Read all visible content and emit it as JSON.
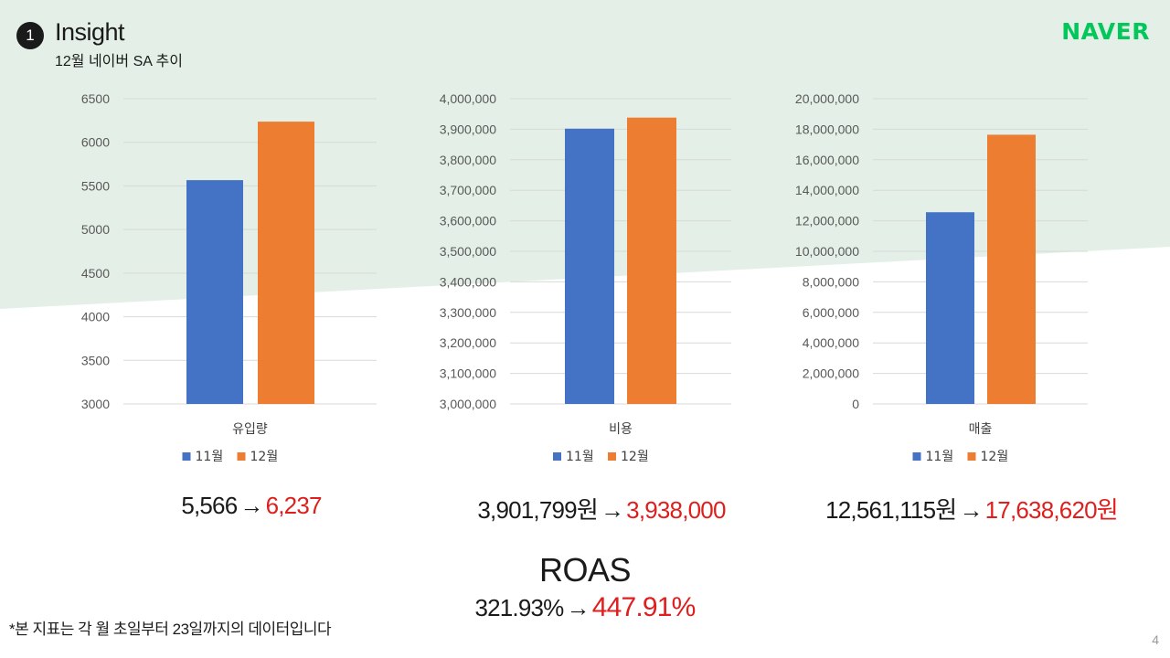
{
  "header": {
    "badge": "1",
    "title": "Insight",
    "subtitle": "12월 네이버 SA 추이"
  },
  "logo": "NAVER",
  "colors": {
    "series_nov": "#4472c4",
    "series_dec": "#ed7d31",
    "background_band": "#e3efe7",
    "logo_green": "#03c75a",
    "highlight_red": "#e01e1e"
  },
  "chart_data": [
    {
      "type": "bar",
      "categories": [
        "유입량"
      ],
      "series": [
        {
          "name": "11월",
          "values": [
            5566
          ]
        },
        {
          "name": "12월",
          "values": [
            6237
          ]
        }
      ],
      "ylim": [
        3000,
        6500
      ],
      "ticks": [
        3000,
        3500,
        4000,
        4500,
        5000,
        5500,
        6000,
        6500
      ],
      "tick_labels": [
        "3000",
        "3500",
        "4000",
        "4500",
        "5000",
        "5500",
        "6000",
        "6500"
      ],
      "grid": true,
      "legend": "bottom"
    },
    {
      "type": "bar",
      "categories": [
        "비용"
      ],
      "series": [
        {
          "name": "11월",
          "values": [
            3901799
          ]
        },
        {
          "name": "12월",
          "values": [
            3938000
          ]
        }
      ],
      "ylim": [
        3000000,
        4000000
      ],
      "ticks": [
        3000000,
        3100000,
        3200000,
        3300000,
        3400000,
        3500000,
        3600000,
        3700000,
        3800000,
        3900000,
        4000000
      ],
      "tick_labels": [
        "3,000,000",
        "3,100,000",
        "3,200,000",
        "3,300,000",
        "3,400,000",
        "3,500,000",
        "3,600,000",
        "3,700,000",
        "3,800,000",
        "3,900,000",
        "4,000,000"
      ],
      "grid": true,
      "legend": "bottom"
    },
    {
      "type": "bar",
      "categories": [
        "매출"
      ],
      "series": [
        {
          "name": "11월",
          "values": [
            12561115
          ]
        },
        {
          "name": "12월",
          "values": [
            17638620
          ]
        }
      ],
      "ylim": [
        0,
        20000000
      ],
      "ticks": [
        0,
        2000000,
        4000000,
        6000000,
        8000000,
        10000000,
        12000000,
        14000000,
        16000000,
        18000000,
        20000000
      ],
      "tick_labels": [
        "0",
        "2,000,000",
        "4,000,000",
        "6,000,000",
        "8,000,000",
        "10,000,000",
        "12,000,000",
        "14,000,000",
        "16,000,000",
        "18,000,000",
        "20,000,000"
      ],
      "grid": true,
      "legend": "bottom"
    }
  ],
  "comparisons": [
    {
      "before": "5,566",
      "arrow": "→",
      "after": "6,237"
    },
    {
      "before": "3,901,799원",
      "arrow": "→",
      "after": "3,938,000"
    },
    {
      "before": "12,561,115원",
      "arrow": "→",
      "after": "17,638,620원"
    }
  ],
  "roas": {
    "title": "ROAS",
    "before": "321.93%",
    "arrow": "→",
    "after": "447.91%"
  },
  "footnote": "*본 지표는 각 월 초일부터 23일까지의 데이터입니다",
  "page_number": "4"
}
